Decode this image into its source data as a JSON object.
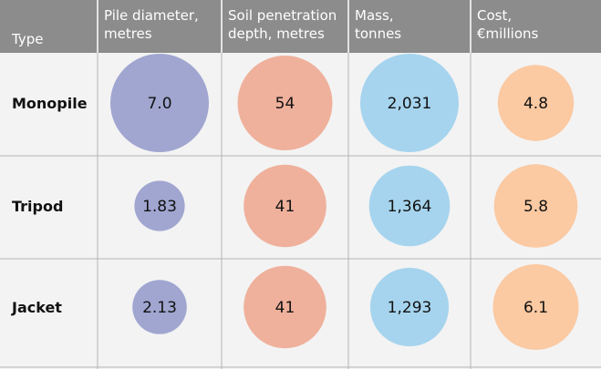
{
  "chart_data": {
    "type": "table",
    "row_header": "Type",
    "columns": [
      {
        "key": "pile_diameter",
        "label": [
          "Pile diameter,",
          "metres"
        ],
        "color": "#a0a6d0"
      },
      {
        "key": "soil_penetration",
        "label": [
          "Soil penetration",
          "depth, metres"
        ],
        "color": "#efb19c"
      },
      {
        "key": "mass",
        "label": [
          "Mass,",
          "tonnes"
        ],
        "color": "#a6d4ee"
      },
      {
        "key": "cost",
        "label": [
          "Cost,",
          "€millions"
        ],
        "color": "#fbc9a2"
      }
    ],
    "rows": [
      {
        "label": "Monopile",
        "values": {
          "pile_diameter": 7.0,
          "soil_penetration": 54,
          "mass": 2031,
          "cost": 4.8
        },
        "display": {
          "pile_diameter": "7.0",
          "soil_penetration": "54",
          "mass": "2,031",
          "cost": "4.8"
        }
      },
      {
        "label": "Tripod",
        "values": {
          "pile_diameter": 1.83,
          "soil_penetration": 41,
          "mass": 1364,
          "cost": 5.8
        },
        "display": {
          "pile_diameter": "1.83",
          "soil_penetration": "41",
          "mass": "1,364",
          "cost": "5.8"
        }
      },
      {
        "label": "Jacket",
        "values": {
          "pile_diameter": 2.13,
          "soil_penetration": 41,
          "mass": 1293,
          "cost": 6.1
        },
        "display": {
          "pile_diameter": "2.13",
          "soil_penetration": "41",
          "mass": "1,293",
          "cost": "6.1"
        }
      }
    ],
    "header_color": "#8c8c8c",
    "grid_color": "#b4b4b4"
  }
}
